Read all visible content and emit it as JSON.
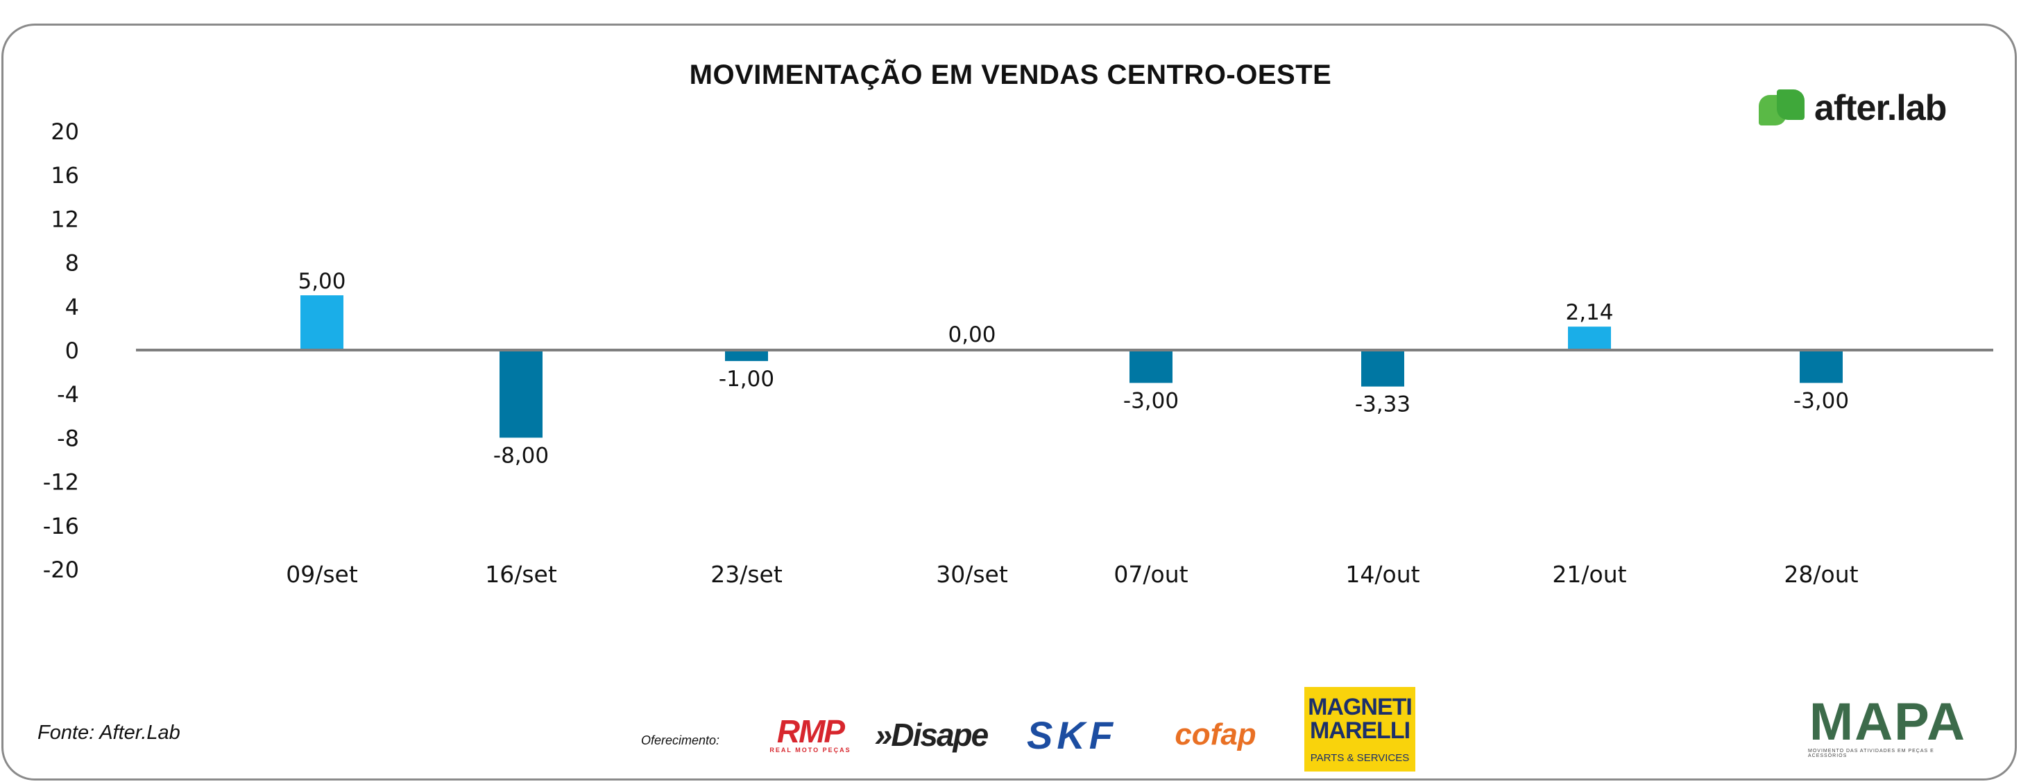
{
  "title": "MOVIMENTAÇÃO EM VENDAS CENTRO-OESTE",
  "source": "Fonte: After.Lab",
  "sponsors_label": "Oferecimento:",
  "logos": {
    "afterlab": "after.lab",
    "rmp": "RMP",
    "rmp_sub": "REAL MOTO PEÇAS",
    "disape": "»Disape",
    "skf": "SKF",
    "cofap": "cofap",
    "magneti_line1": "MAGNETI",
    "magneti_line2": "MARELLI",
    "magneti_line3": "PARTS & SERVICES",
    "mapa": "MAPA",
    "mapa_sub": "MOVIMENTO DAS ATIVIDADES EM PEÇAS E ACESSÓRIOS"
  },
  "colors": {
    "positive": "#1aaee8",
    "negative": "#0077a3",
    "axis": "#7f7f7f"
  },
  "chart_data": {
    "type": "bar",
    "title": "MOVIMENTAÇÃO EM VENDAS CENTRO-OESTE",
    "categories": [
      "09/set",
      "16/set",
      "23/set",
      "30/set",
      "07/out",
      "14/out",
      "21/out",
      "28/out"
    ],
    "values": [
      5.0,
      -8.0,
      -1.0,
      0.0,
      -3.0,
      -3.33,
      2.14,
      -3.0
    ],
    "data_labels": [
      "5,00",
      "-8,00",
      "-1,00",
      "0,00",
      "-3,00",
      "-3,33",
      "2,14",
      "-3,00"
    ],
    "yticks": [
      "20",
      "16",
      "12",
      "8",
      "4",
      "0",
      "-4",
      "-8",
      "-12",
      "-16",
      "-20"
    ],
    "ylim": [
      -20,
      20
    ],
    "xlabel": "",
    "ylabel": "",
    "grid": false,
    "legend": "none"
  }
}
